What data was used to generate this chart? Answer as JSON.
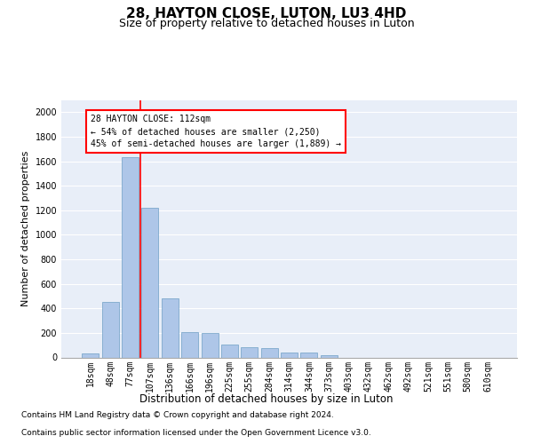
{
  "title": "28, HAYTON CLOSE, LUTON, LU3 4HD",
  "subtitle": "Size of property relative to detached houses in Luton",
  "xlabel": "Distribution of detached houses by size in Luton",
  "ylabel": "Number of detached properties",
  "categories": [
    "18sqm",
    "48sqm",
    "77sqm",
    "107sqm",
    "136sqm",
    "166sqm",
    "196sqm",
    "225sqm",
    "255sqm",
    "284sqm",
    "314sqm",
    "344sqm",
    "373sqm",
    "403sqm",
    "432sqm",
    "462sqm",
    "492sqm",
    "521sqm",
    "551sqm",
    "580sqm",
    "610sqm"
  ],
  "values": [
    30,
    450,
    1630,
    1220,
    480,
    210,
    200,
    105,
    80,
    75,
    40,
    40,
    15,
    0,
    0,
    0,
    0,
    0,
    0,
    0,
    0
  ],
  "bar_color": "#aec6e8",
  "bar_edge_color": "#6e9fc5",
  "vline_color": "red",
  "annotation_text": "28 HAYTON CLOSE: 112sqm\n← 54% of detached houses are smaller (2,250)\n45% of semi-detached houses are larger (1,889) →",
  "ylim": [
    0,
    2100
  ],
  "yticks": [
    0,
    200,
    400,
    600,
    800,
    1000,
    1200,
    1400,
    1600,
    1800,
    2000
  ],
  "background_color": "#e8eef8",
  "grid_color": "#ffffff",
  "footer_line1": "Contains HM Land Registry data © Crown copyright and database right 2024.",
  "footer_line2": "Contains public sector information licensed under the Open Government Licence v3.0.",
  "title_fontsize": 11,
  "subtitle_fontsize": 9,
  "xlabel_fontsize": 8.5,
  "ylabel_fontsize": 8,
  "tick_fontsize": 7,
  "footer_fontsize": 6.5,
  "annotation_fontsize": 7,
  "vline_x_pos": 2.5
}
